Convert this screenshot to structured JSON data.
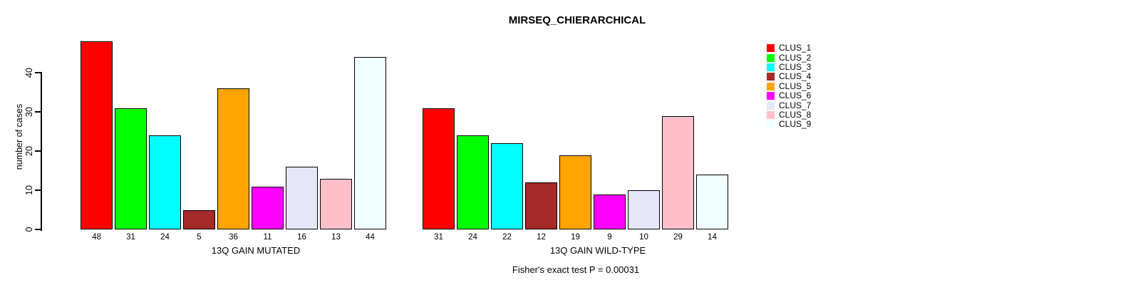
{
  "title": "MIRSEQ_CHIERARCHICAL",
  "caption": "Fisher's exact test P = 0.00031",
  "chart_data": {
    "type": "bar",
    "title": "MIRSEQ_CHIERARCHICAL",
    "ylabel": "number of cases",
    "ylim": [
      0,
      48
    ],
    "yticks": [
      0,
      10,
      20,
      30,
      40
    ],
    "grid": false,
    "bar_border_color": "#000000",
    "categories": [
      "CLUS_1",
      "CLUS_2",
      "CLUS_3",
      "CLUS_4",
      "CLUS_5",
      "CLUS_6",
      "CLUS_7",
      "CLUS_8",
      "CLUS_9"
    ],
    "colors": [
      "#FF0000",
      "#00FF00",
      "#00FFFF",
      "#A52A2A",
      "#FFA500",
      "#FF00FF",
      "#E6E6FA",
      "#FFC0CB",
      "#F0FFFF"
    ],
    "panels": [
      {
        "xlabel": "13Q GAIN MUTATED",
        "values": [
          48,
          31,
          24,
          5,
          36,
          11,
          16,
          13,
          44
        ]
      },
      {
        "xlabel": "13Q GAIN WILD-TYPE",
        "values": [
          31,
          24,
          22,
          12,
          19,
          9,
          10,
          29,
          14
        ]
      }
    ],
    "legend": {
      "position": "top-right",
      "entries": [
        "CLUS_1",
        "CLUS_2",
        "CLUS_3",
        "CLUS_4",
        "CLUS_5",
        "CLUS_6",
        "CLUS_7",
        "CLUS_8",
        "CLUS_9"
      ]
    },
    "annotation": "Fisher's exact test P = 0.00031"
  }
}
